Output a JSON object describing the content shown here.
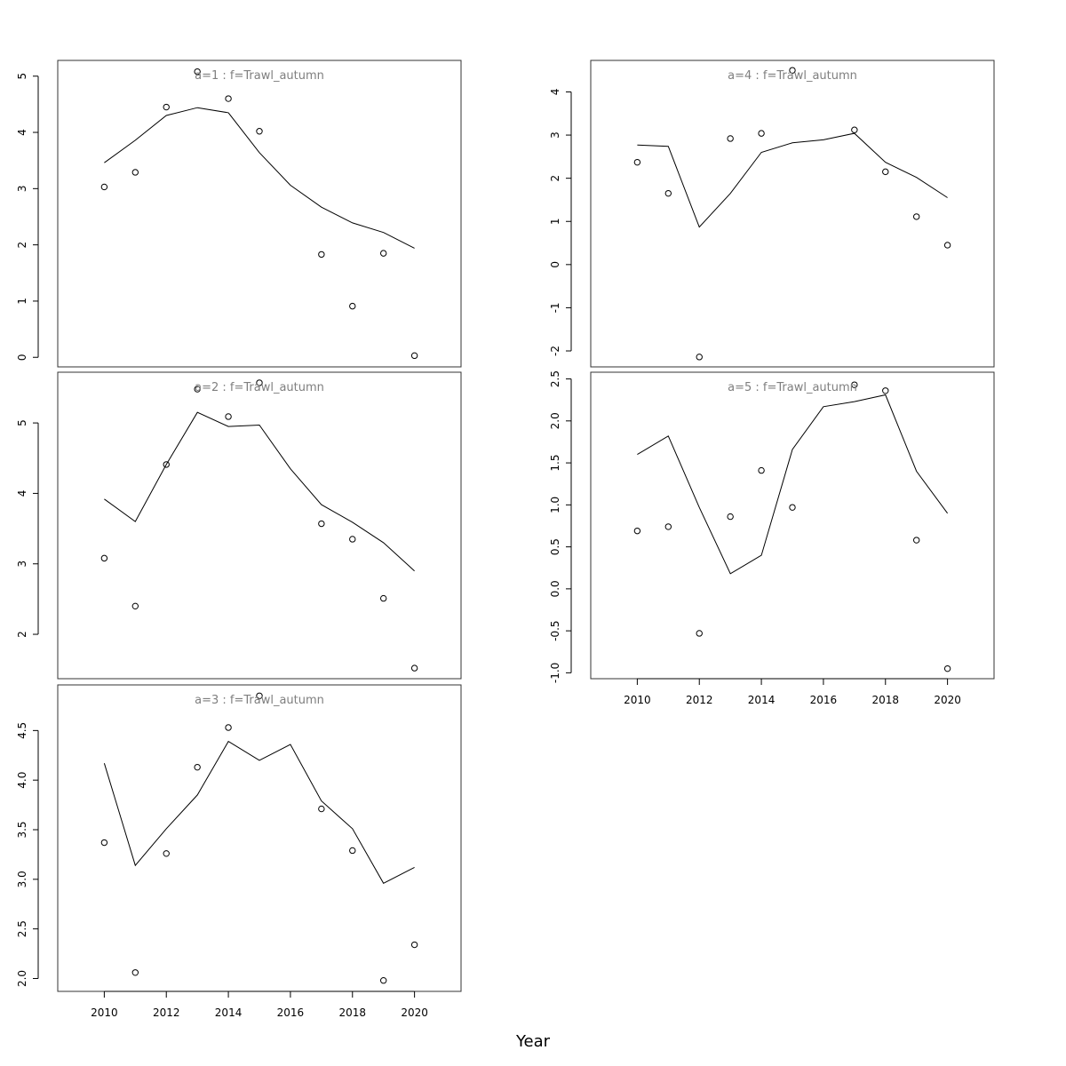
{
  "chart_data": {
    "type": "line",
    "xlabel": "Year",
    "x_ticks": [
      2010,
      2012,
      2014,
      2016,
      2018,
      2020
    ],
    "xlim": [
      2008.5,
      2021.5
    ],
    "panels": [
      {
        "title": "a=1  :  f=Trawl_autumn",
        "ylim": [
          -0.17,
          5.28
        ],
        "y_ticks": [
          0,
          1,
          2,
          3,
          4,
          5
        ],
        "y_tick_labels": [
          "0",
          "1",
          "2",
          "3",
          "4",
          "5"
        ],
        "fitted": {
          "x": [
            2010,
            2011,
            2012,
            2013,
            2014,
            2015,
            2016,
            2017,
            2018,
            2019,
            2020
          ],
          "y": [
            3.46,
            3.86,
            4.3,
            4.44,
            4.35,
            3.64,
            3.06,
            2.67,
            2.39,
            2.22,
            1.94
          ]
        },
        "observed": {
          "x": [
            2010,
            2011,
            2012,
            2013,
            2014,
            2015,
            2017,
            2018,
            2019,
            2020
          ],
          "y": [
            3.03,
            3.29,
            4.45,
            5.08,
            4.6,
            4.02,
            1.83,
            0.91,
            1.85,
            0.03
          ]
        }
      },
      {
        "title": "a=2  :  f=Trawl_autumn",
        "ylim": [
          1.37,
          5.72
        ],
        "y_ticks": [
          2,
          3,
          4,
          5
        ],
        "y_tick_labels": [
          "2",
          "3",
          "4",
          "5"
        ],
        "fitted": {
          "x": [
            2010,
            2011,
            2012,
            2013,
            2014,
            2015,
            2016,
            2017,
            2018,
            2019,
            2020
          ],
          "y": [
            3.92,
            3.6,
            4.41,
            5.15,
            4.95,
            4.97,
            4.35,
            3.84,
            3.59,
            3.3,
            2.9
          ]
        },
        "observed": {
          "x": [
            2010,
            2011,
            2012,
            2013,
            2014,
            2015,
            2017,
            2018,
            2019,
            2020
          ],
          "y": [
            3.08,
            2.4,
            4.41,
            5.48,
            5.09,
            5.57,
            3.57,
            3.35,
            2.51,
            1.52
          ]
        }
      },
      {
        "title": "a=3  :  f=Trawl_autumn",
        "ylim": [
          1.87,
          4.96
        ],
        "y_ticks": [
          2.0,
          2.5,
          3.0,
          3.5,
          4.0,
          4.5
        ],
        "y_tick_labels": [
          "2.0",
          "2.5",
          "3.0",
          "3.5",
          "4.0",
          "4.5"
        ],
        "fitted": {
          "x": [
            2010,
            2011,
            2012,
            2013,
            2014,
            2015,
            2016,
            2017,
            2018,
            2019,
            2020
          ],
          "y": [
            4.17,
            3.14,
            3.51,
            3.85,
            4.39,
            4.2,
            4.36,
            3.79,
            3.51,
            2.96,
            3.12
          ]
        },
        "observed": {
          "x": [
            2010,
            2011,
            2012,
            2013,
            2014,
            2015,
            2017,
            2018,
            2019,
            2020
          ],
          "y": [
            3.37,
            2.06,
            3.26,
            4.13,
            4.53,
            4.85,
            3.71,
            3.29,
            1.98,
            2.34
          ]
        }
      },
      {
        "title": "a=4  :  f=Trawl_autumn",
        "ylim": [
          -2.37,
          4.73
        ],
        "y_ticks": [
          -2,
          -1,
          0,
          1,
          2,
          3,
          4
        ],
        "y_tick_labels": [
          "-2",
          "-1",
          "0",
          "1",
          "2",
          "3",
          "4"
        ],
        "fitted": {
          "x": [
            2010,
            2011,
            2012,
            2013,
            2014,
            2015,
            2016,
            2017,
            2018,
            2019,
            2020
          ],
          "y": [
            2.77,
            2.74,
            0.87,
            1.65,
            2.6,
            2.82,
            2.89,
            3.04,
            2.37,
            2.02,
            1.55
          ]
        },
        "observed": {
          "x": [
            2010,
            2011,
            2012,
            2013,
            2014,
            2015,
            2017,
            2018,
            2019,
            2020
          ],
          "y": [
            2.37,
            1.65,
            -2.14,
            2.92,
            3.04,
            4.5,
            3.12,
            2.15,
            1.11,
            0.45
          ]
        }
      },
      {
        "title": "a=5  :  f=Trawl_autumn",
        "ylim": [
          -1.07,
          2.58
        ],
        "y_ticks": [
          -1.0,
          -0.5,
          0.0,
          0.5,
          1.0,
          1.5,
          2.0,
          2.5
        ],
        "y_tick_labels": [
          "-1.0",
          "-0.5",
          "0.0",
          "0.5",
          "1.0",
          "1.5",
          "2.0",
          "2.5"
        ],
        "fitted": {
          "x": [
            2010,
            2011,
            2012,
            2013,
            2014,
            2015,
            2016,
            2017,
            2018,
            2019,
            2020
          ],
          "y": [
            1.6,
            1.82,
            0.97,
            0.18,
            0.4,
            1.66,
            2.17,
            2.23,
            2.31,
            1.4,
            0.9
          ]
        },
        "observed": {
          "x": [
            2010,
            2011,
            2012,
            2013,
            2014,
            2015,
            2017,
            2018,
            2019,
            2020
          ],
          "y": [
            0.69,
            0.74,
            -0.53,
            0.86,
            1.41,
            0.97,
            2.43,
            2.36,
            0.58,
            -0.95
          ]
        }
      }
    ]
  }
}
